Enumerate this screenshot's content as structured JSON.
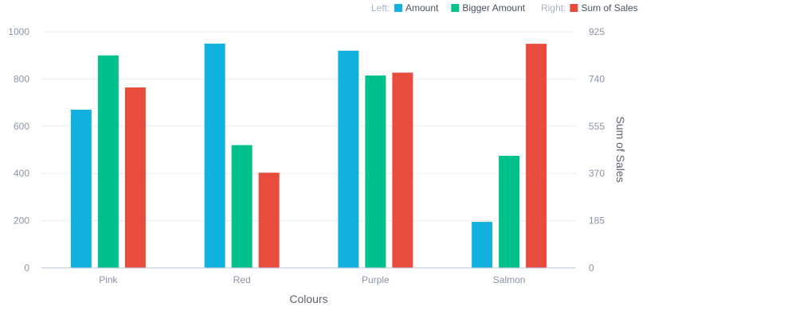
{
  "chart_data": {
    "type": "bar",
    "categories": [
      "Pink",
      "Red",
      "Purple",
      "Salmon"
    ],
    "xlabel": "Colours",
    "left_axis": {
      "label": "",
      "range": [
        0,
        1000
      ],
      "ticks": [
        "0",
        "200",
        "400",
        "600",
        "800",
        "1000"
      ]
    },
    "right_axis": {
      "label": "Sum of Sales",
      "range": [
        0,
        925
      ],
      "ticks": [
        "0",
        "185",
        "370",
        "555",
        "740",
        "925"
      ]
    },
    "legend": {
      "placement": "top-right",
      "left_label": "Left:",
      "right_label": "Right:"
    },
    "series": [
      {
        "name": "Amount",
        "axis": "left",
        "color": "#13b1e0",
        "values": [
          670,
          950,
          920,
          195
        ]
      },
      {
        "name": "Bigger Amount",
        "axis": "left",
        "color": "#00c08b",
        "values": [
          900,
          520,
          815,
          475
        ]
      },
      {
        "name": "Sum of Sales",
        "axis": "right",
        "color": "#e74c3c",
        "values": [
          707,
          373,
          765,
          878
        ]
      }
    ],
    "grid": true
  }
}
